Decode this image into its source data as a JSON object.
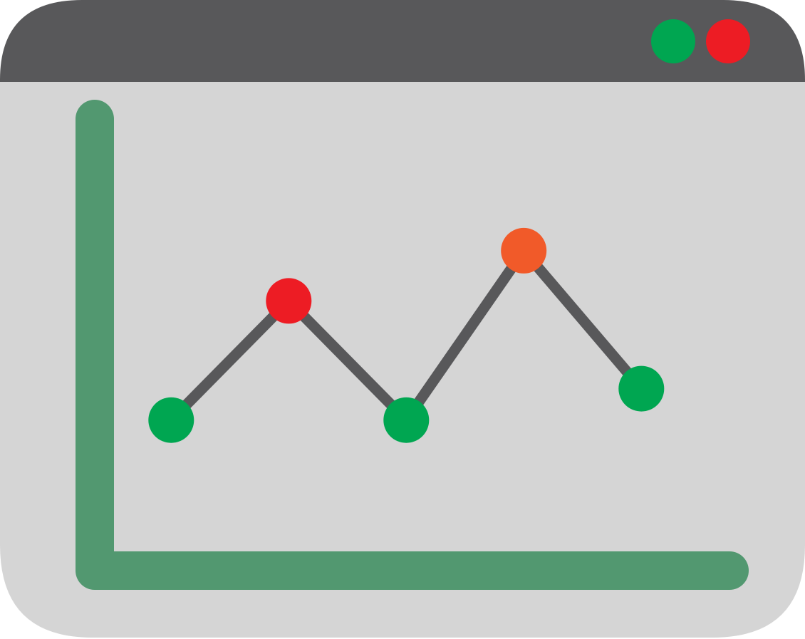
{
  "window": {
    "titlebar_color": "#58585a",
    "body_color": "#d5d5d5",
    "buttons": [
      {
        "name": "green-window-button",
        "color": "#00a651"
      },
      {
        "name": "red-window-button",
        "color": "#ed1c24"
      }
    ]
  },
  "chart_data": {
    "type": "line",
    "title": "",
    "xlabel": "",
    "ylabel": "",
    "axis_color": "#529870",
    "line_color": "#58585a",
    "x": [
      1,
      2,
      3,
      4,
      5
    ],
    "series": [
      {
        "values": [
          2.4,
          4.3,
          2.4,
          5.1,
          2.9
        ]
      }
    ],
    "marker_colors": [
      "#00a651",
      "#ed1c24",
      "#00a651",
      "#f15a29",
      "#00a651"
    ],
    "xlim": [
      0.35,
      5.75
    ],
    "ylim": [
      0,
      7.2
    ],
    "grid": false,
    "legend": "none"
  }
}
